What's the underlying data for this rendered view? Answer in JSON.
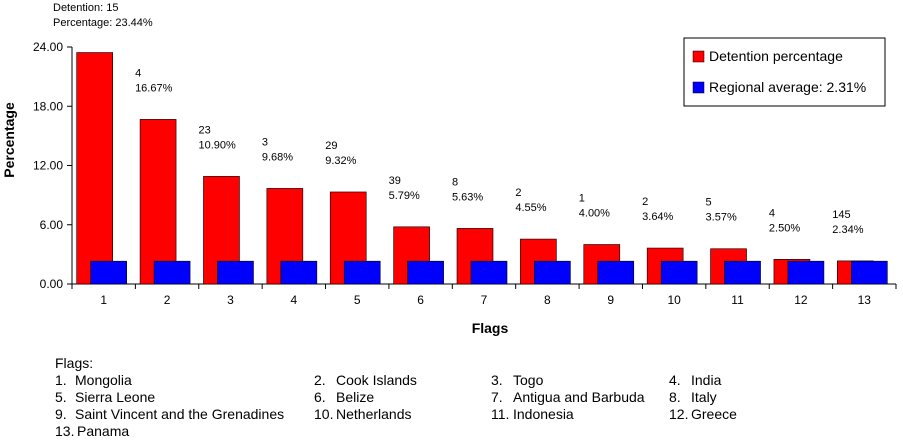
{
  "chart_data": {
    "type": "bar",
    "title": "",
    "xlabel": "Flags",
    "ylabel": "Percentage",
    "ylim": [
      0,
      24
    ],
    "yticks": [
      "0.00",
      "6.00",
      "12.00",
      "18.00",
      "24.00"
    ],
    "categories": [
      "1",
      "2",
      "3",
      "4",
      "5",
      "6",
      "7",
      "8",
      "9",
      "10",
      "11",
      "12",
      "13"
    ],
    "series": [
      {
        "name": "Detention percentage",
        "color": "#ff0000",
        "values": [
          23.44,
          16.67,
          10.9,
          9.68,
          9.32,
          5.79,
          5.63,
          4.55,
          4.0,
          3.64,
          3.57,
          2.5,
          2.34
        ]
      },
      {
        "name": "Regional average: 2.31%",
        "color": "#0000ff",
        "values": [
          2.31,
          2.31,
          2.31,
          2.31,
          2.31,
          2.31,
          2.31,
          2.31,
          2.31,
          2.31,
          2.31,
          2.31,
          2.31
        ]
      }
    ],
    "data_labels": [
      {
        "count": "Detention: 15",
        "pct": "Percentage: 23.44%"
      },
      {
        "count": "4",
        "pct": "16.67%"
      },
      {
        "count": "23",
        "pct": "10.90%"
      },
      {
        "count": "3",
        "pct": "9.68%"
      },
      {
        "count": "29",
        "pct": "9.32%"
      },
      {
        "count": "39",
        "pct": "5.79%"
      },
      {
        "count": "8",
        "pct": "5.63%"
      },
      {
        "count": "2",
        "pct": "4.55%"
      },
      {
        "count": "1",
        "pct": "4.00%"
      },
      {
        "count": "2",
        "pct": "3.64%"
      },
      {
        "count": "5",
        "pct": "3.57%"
      },
      {
        "count": "4",
        "pct": "2.50%"
      },
      {
        "count": "145",
        "pct": "2.34%"
      }
    ],
    "legend_position": "top-right",
    "grid": false
  },
  "flags_key": {
    "title": "Flags:",
    "items": [
      {
        "num": "1.",
        "name": "Mongolia"
      },
      {
        "num": "2.",
        "name": "Cook Islands"
      },
      {
        "num": "3.",
        "name": "Togo"
      },
      {
        "num": "4.",
        "name": "India"
      },
      {
        "num": "5.",
        "name": "Sierra Leone"
      },
      {
        "num": "6.",
        "name": "Belize"
      },
      {
        "num": "7.",
        "name": "Antigua and Barbuda"
      },
      {
        "num": "8.",
        "name": "Italy"
      },
      {
        "num": "9.",
        "name": "Saint Vincent and the Grenadines"
      },
      {
        "num": "10.",
        "name": "Netherlands"
      },
      {
        "num": "11.",
        "name": "Indonesia"
      },
      {
        "num": "12.",
        "name": "Greece"
      },
      {
        "num": "13.",
        "name": "Panama"
      }
    ]
  }
}
